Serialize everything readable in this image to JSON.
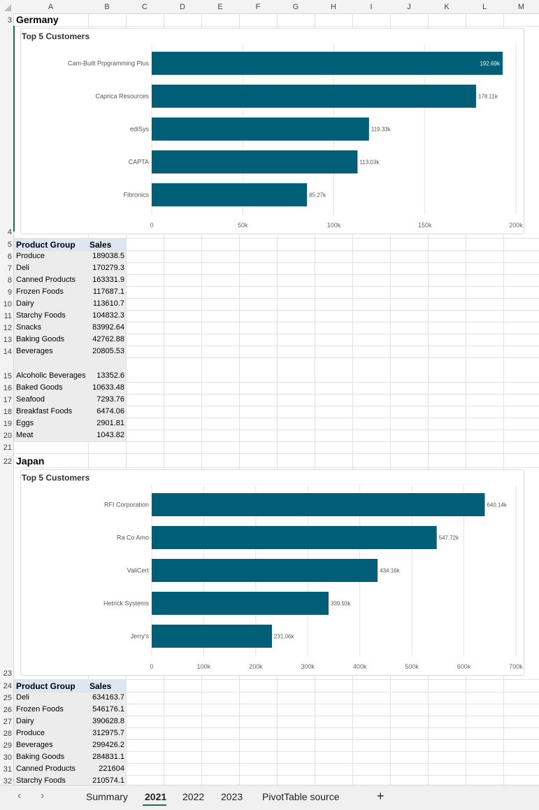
{
  "columns": [
    "A",
    "B",
    "C",
    "D",
    "E",
    "F",
    "G",
    "H",
    "I",
    "J",
    "K",
    "L",
    "M"
  ],
  "germany": {
    "title": "Germany",
    "chart_title": "Top 5 Customers",
    "table": {
      "header": [
        "Product Group",
        "Sales"
      ],
      "rows": [
        [
          "Produce",
          "189038.5"
        ],
        [
          "Deli",
          "170279.3"
        ],
        [
          "Canned Products",
          "163331.9"
        ],
        [
          "Frozen Foods",
          "117687.1"
        ],
        [
          "Dairy",
          "113610.7"
        ],
        [
          "Starchy Foods",
          "104832.3"
        ],
        [
          "Snacks",
          "83992.64"
        ],
        [
          "Baking Goods",
          "42762.88"
        ],
        [
          "Beverages",
          "20805.53"
        ],
        [
          "Alcoholic Beverages",
          "13352.6"
        ],
        [
          "Baked Goods",
          "10633.48"
        ],
        [
          "Seafood",
          "7293.76"
        ],
        [
          "Breakfast Foods",
          "6474.06"
        ],
        [
          "Eggs",
          "2901.81"
        ],
        [
          "Meat",
          "1043.82"
        ]
      ]
    }
  },
  "japan": {
    "title": "Japan",
    "chart_title": "Top 5 Customers",
    "table": {
      "header": [
        "Product Group",
        "Sales"
      ],
      "rows": [
        [
          "Deli",
          "634163.7"
        ],
        [
          "Frozen Foods",
          "546176.1"
        ],
        [
          "Dairy",
          "390628.8"
        ],
        [
          "Produce",
          "312975.7"
        ],
        [
          "Beverages",
          "299426.2"
        ],
        [
          "Baking Goods",
          "284831.1"
        ],
        [
          "Canned Products",
          "221604"
        ],
        [
          "Starchy Foods",
          "210574.1"
        ]
      ]
    }
  },
  "chart_data": [
    {
      "type": "bar",
      "orientation": "horizontal",
      "title": "Top 5 Customers",
      "categories": [
        "Cam-Built Prpgramming Plus",
        "Caprica  Resources",
        "ediSys",
        "CAPTA",
        "Fibronics"
      ],
      "values": [
        192690,
        178110,
        119330,
        113030,
        85270
      ],
      "data_labels": [
        "192.69k",
        "178.11k",
        "119.33k",
        "113.03k",
        "85.27k"
      ],
      "xlim": [
        0,
        200000
      ],
      "ticks": [
        0,
        50000,
        100000,
        150000,
        200000
      ],
      "tick_labels": [
        "0",
        "50k",
        "100k",
        "150k",
        "200k"
      ],
      "grid": true,
      "bar_color": "#005f76"
    },
    {
      "type": "bar",
      "orientation": "horizontal",
      "title": "Top 5 Customers",
      "categories": [
        "RFI Corporation",
        "Ra Co Amo",
        "ValiCert",
        "Hetrick Systems",
        "Jerry's"
      ],
      "values": [
        640140,
        547720,
        434160,
        339930,
        231060
      ],
      "data_labels": [
        "640.14k",
        "547.72k",
        "434.16k",
        "339.93k",
        "231.06k"
      ],
      "xlim": [
        0,
        700000
      ],
      "ticks": [
        0,
        100000,
        200000,
        300000,
        400000,
        500000,
        600000,
        700000
      ],
      "tick_labels": [
        "0",
        "100k",
        "200k",
        "300k",
        "400k",
        "500k",
        "600k",
        "700k"
      ],
      "grid": true,
      "bar_color": "#005f76"
    }
  ],
  "tabs": {
    "items": [
      "Summary",
      "2021",
      "2022",
      "2023",
      "PivotTable source"
    ],
    "active": "2021",
    "prev_icon": "‹",
    "next_icon": "›",
    "add_icon": "+"
  },
  "colors": {
    "bar": "#005f76",
    "header_fill": "#dde7f3",
    "table_fill": "#ececec",
    "active_tab": "#1e7145"
  }
}
